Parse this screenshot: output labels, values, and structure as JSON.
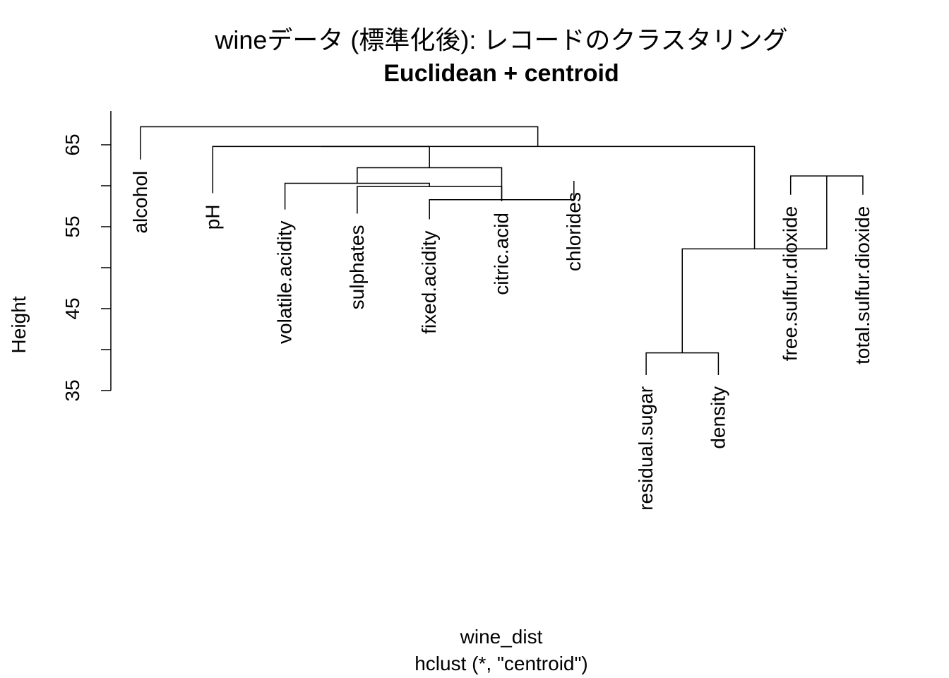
{
  "chart_data": {
    "type": "dendrogram",
    "title": "wineデータ (標準化後): レコードのクラスタリング",
    "subtitle": "Euclidean + centroid",
    "xlabel": "wine_dist",
    "sub_xlabel": "hclust (*, \"centroid\")",
    "ylabel": "Height",
    "ylim": [
      35,
      69
    ],
    "yticks": [
      35,
      45,
      55,
      65
    ],
    "yminor_ticks": [
      40,
      50,
      60
    ],
    "leaves": [
      {
        "label": "alcohol",
        "height": 63.2
      },
      {
        "label": "pH",
        "height": 59.1
      },
      {
        "label": "volatile.acidity",
        "height": 57.1
      },
      {
        "label": "sulphates",
        "height": 56.6
      },
      {
        "label": "fixed.acidity",
        "height": 55.9
      },
      {
        "label": "citric.acid",
        "height": 58.1
      },
      {
        "label": "chlorides",
        "height": 60.6
      },
      {
        "label": "residual.sugar",
        "height": 36.9
      },
      {
        "label": "density",
        "height": 36.9
      },
      {
        "label": "free.sulfur.dioxide",
        "height": 58.9
      },
      {
        "label": "total.sulfur.dioxide",
        "height": 58.9
      }
    ],
    "merges": [
      {
        "id": "m1",
        "left": "L7",
        "right": "L8",
        "height": 39.6
      },
      {
        "id": "m2",
        "left": "L9",
        "right": "L10",
        "height": 61.2
      },
      {
        "id": "m3",
        "left": "L4",
        "right": "L6",
        "height": 58.3
      },
      {
        "id": "m4",
        "left": "m1",
        "right": "m2",
        "height": 52.3
      },
      {
        "id": "m5",
        "left": "L3",
        "right": "L5",
        "height": 59.9
      },
      {
        "id": "m6",
        "left": "L2",
        "right": "m5",
        "height": 60.3
      },
      {
        "id": "m7",
        "left": "m3",
        "right": "m6",
        "height": 62.2
      },
      {
        "id": "m8",
        "left": "m7",
        "right": "L1",
        "height": 64.8
      },
      {
        "id": "m9",
        "left": "m8",
        "right": "m4",
        "height": 64.8
      },
      {
        "id": "m10",
        "left": "L0",
        "right": "m9",
        "height": 67.2
      }
    ]
  }
}
